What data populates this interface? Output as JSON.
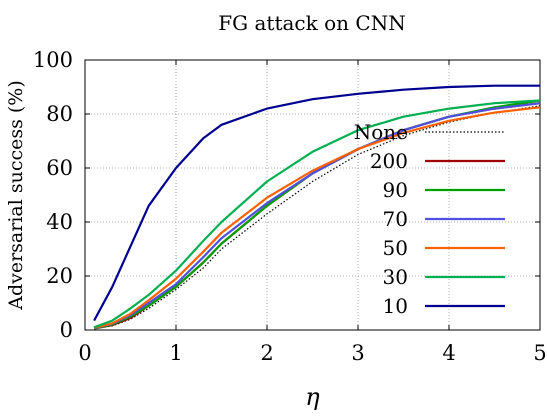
{
  "chart_data": {
    "type": "line",
    "title": "FG attack on CNN",
    "xlabel": "η",
    "ylabel": "Adversarial success (%)",
    "xlim": [
      0,
      5
    ],
    "ylim": [
      0,
      100
    ],
    "xticks": [
      0,
      1,
      2,
      3,
      4,
      5
    ],
    "yticks": [
      0,
      20,
      40,
      60,
      80,
      100
    ],
    "grid": true,
    "legend_position": "lower-right",
    "x": [
      0.1,
      0.3,
      0.5,
      0.7,
      1.0,
      1.3,
      1.5,
      2.0,
      2.5,
      3.0,
      3.5,
      4.0,
      4.5,
      5.0
    ],
    "series": [
      {
        "name": "None",
        "color": "#000000",
        "style": "dotted",
        "values": [
          0.5,
          1.5,
          4,
          8,
          15,
          23,
          30,
          43,
          55,
          65,
          72,
          77,
          80.5,
          83
        ]
      },
      {
        "name": "200",
        "color": "#a00000",
        "style": "solid",
        "values": [
          0.5,
          1.8,
          4.5,
          9,
          16,
          25,
          32,
          46,
          58,
          67,
          74,
          79,
          82,
          84
        ]
      },
      {
        "name": "90",
        "color": "#00a000",
        "style": "solid",
        "values": [
          0.6,
          2,
          5,
          9,
          16,
          25,
          32,
          46,
          58,
          67,
          74,
          79,
          82.5,
          85
        ]
      },
      {
        "name": "70",
        "color": "#5050e0",
        "style": "solid",
        "values": [
          0.7,
          2.3,
          5.5,
          10,
          17,
          27,
          34,
          47,
          58,
          67,
          74,
          79,
          82,
          84
        ]
      },
      {
        "name": "50",
        "color": "#ff6000",
        "style": "solid",
        "values": [
          0.8,
          2.5,
          6,
          11,
          19,
          29,
          36,
          49,
          59,
          67,
          73,
          77.5,
          80.5,
          82.5
        ]
      },
      {
        "name": "30",
        "color": "#00b050",
        "style": "solid",
        "values": [
          1,
          3.5,
          8,
          13,
          22,
          33,
          40,
          55,
          66,
          74,
          79,
          82,
          84,
          85
        ]
      },
      {
        "name": "10",
        "color": "#000090",
        "style": "solid",
        "values": [
          3.5,
          16,
          31,
          46,
          60,
          71,
          76,
          82,
          85.5,
          87.5,
          89,
          90,
          90.5,
          90.5
        ]
      }
    ]
  }
}
